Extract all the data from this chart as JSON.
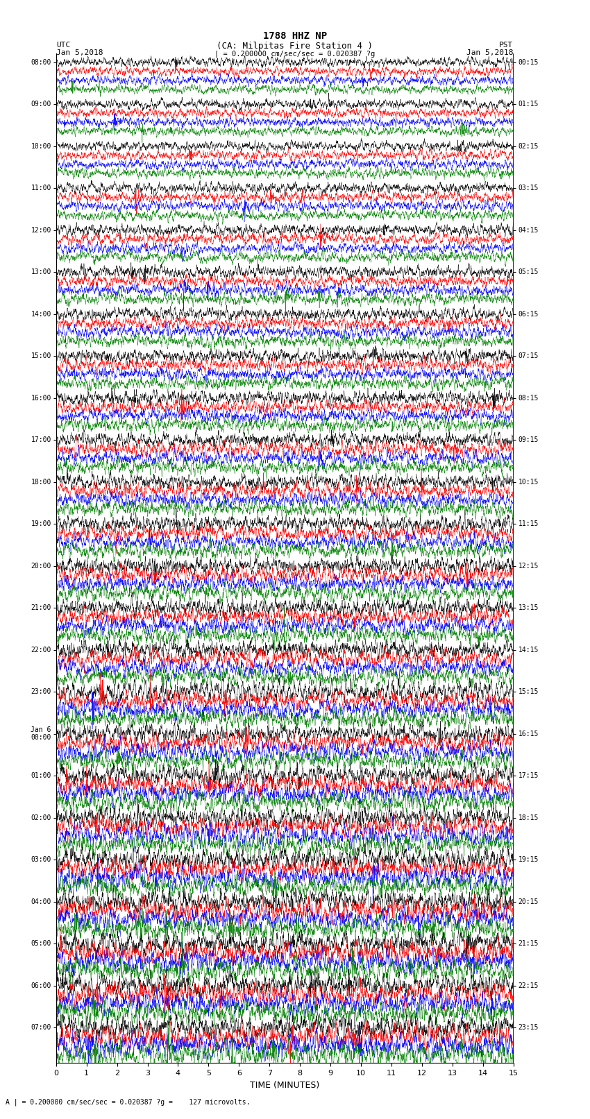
{
  "title_line1": "1788 HHZ NP",
  "title_line2": "(CA: Milpitas Fire Station 4 )",
  "scale_text": "| = 0.200000 cm/sec/sec = 0.020387 ?g",
  "footer_text": "A | = 0.200000 cm/sec/sec = 0.020387 ?g =    127 microvolts.",
  "left_label": "UTC",
  "left_date": "Jan 5,2018",
  "right_label": "PST",
  "right_date": "Jan 5,2018",
  "xlabel": "TIME (MINUTES)",
  "utc_labels": [
    "08:00",
    "09:00",
    "10:00",
    "11:00",
    "12:00",
    "13:00",
    "14:00",
    "15:00",
    "16:00",
    "17:00",
    "18:00",
    "19:00",
    "20:00",
    "21:00",
    "22:00",
    "23:00",
    "Jan 6\n00:00",
    "01:00",
    "02:00",
    "03:00",
    "04:00",
    "05:00",
    "06:00",
    "07:00"
  ],
  "pst_labels": [
    "00:15",
    "01:15",
    "02:15",
    "03:15",
    "04:15",
    "05:15",
    "06:15",
    "07:15",
    "08:15",
    "09:15",
    "10:15",
    "11:15",
    "12:15",
    "13:15",
    "14:15",
    "15:15",
    "16:15",
    "17:15",
    "18:15",
    "19:15",
    "20:15",
    "21:15",
    "22:15",
    "23:15"
  ],
  "colors": [
    "black",
    "red",
    "blue",
    "green"
  ],
  "n_rows": 24,
  "traces_per_row": 4,
  "xmin": 0,
  "xmax": 15,
  "bg_color": "white",
  "seed": 42
}
